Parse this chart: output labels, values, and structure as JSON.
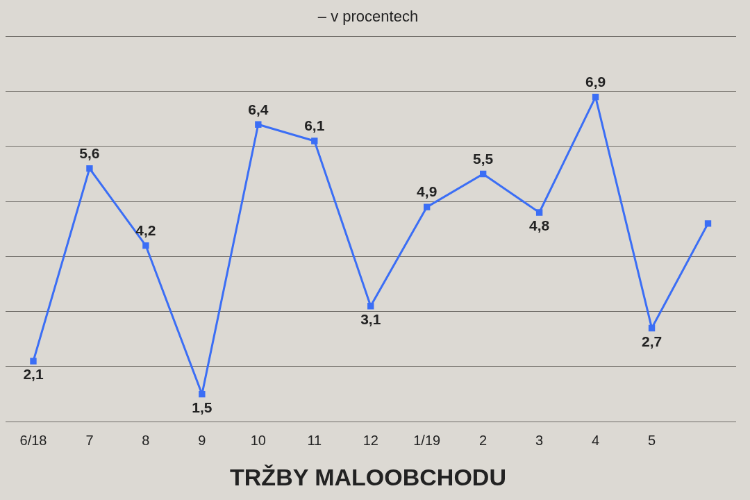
{
  "chart_data": {
    "type": "line",
    "title": "TRŽBY MALOOBCHODU",
    "subtitle": "– v procentech",
    "categories": [
      "6/18",
      "7",
      "8",
      "9",
      "10",
      "11",
      "12",
      "1/19",
      "2",
      "3",
      "4",
      "5",
      null
    ],
    "series": [
      {
        "color": "#3b6ef5",
        "values": [
          2.1,
          5.6,
          4.2,
          1.5,
          6.4,
          6.1,
          3.1,
          4.9,
          5.5,
          4.8,
          6.9,
          2.7,
          4.6
        ],
        "value_labels": [
          "2,1",
          "5,6",
          "4,2",
          "1,5",
          "6,4",
          "6,1",
          "3,1",
          "4,9",
          "5,5",
          "4,8",
          "6,9",
          "2,7",
          null
        ]
      }
    ],
    "ylim": [
      1,
      8
    ],
    "yticks": [
      {
        "value": 1,
        "label": null
      },
      {
        "value": 2,
        "label": null
      },
      {
        "value": 3,
        "label": null
      },
      {
        "value": 4,
        "label": null
      },
      {
        "value": 5,
        "label": null
      },
      {
        "value": 6,
        "label": null
      },
      {
        "value": 7,
        "label": null
      },
      {
        "value": 8,
        "label": null
      }
    ],
    "tick_labels": "x",
    "grid": "y",
    "marker": "square",
    "line_style": "solid",
    "legend": false
  }
}
